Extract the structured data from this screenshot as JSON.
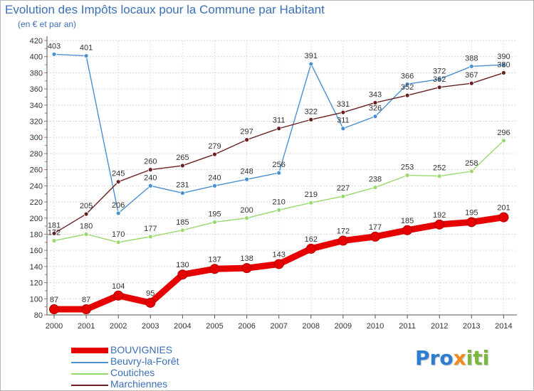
{
  "header": {
    "title": "Evolution des Impôts locaux pour la Commune par Habitant",
    "subtitle": "(en € et par an)"
  },
  "brand": {
    "part1": "Pro",
    "part2": "x",
    "part3": "iti"
  },
  "colors": {
    "bouvignies": "#e60000",
    "beuvry": "#4a90d0",
    "coutiches": "#99d86a",
    "marchiennes": "#6b1f1f",
    "title": "#3b6fb6",
    "grid": "#d9d9d9"
  },
  "chart_data": {
    "type": "line",
    "x": [
      "2000",
      "2001",
      "2002",
      "2003",
      "2004",
      "2005",
      "2006",
      "2007",
      "2008",
      "2009",
      "2010",
      "2011",
      "2012",
      "2013",
      "2014"
    ],
    "ylim": [
      80,
      420
    ],
    "yticks": [
      80,
      100,
      120,
      140,
      160,
      180,
      200,
      220,
      240,
      260,
      280,
      300,
      320,
      340,
      360,
      380,
      400,
      420
    ],
    "grid": true,
    "legend_position": "bottom-left",
    "series": [
      {
        "name": "BOUVIGNIES",
        "color": "#e60000",
        "values": [
          87,
          87,
          104,
          95,
          130,
          137,
          138,
          143,
          162,
          172,
          177,
          185,
          192,
          195,
          201
        ]
      },
      {
        "name": "Beuvry-la-Forêt",
        "color": "#4a90d0",
        "values": [
          403,
          401,
          206,
          240,
          231,
          240,
          248,
          256,
          391,
          311,
          326,
          366,
          372,
          388,
          390
        ]
      },
      {
        "name": "Coutiches",
        "color": "#99d86a",
        "values": [
          172,
          180,
          170,
          177,
          185,
          195,
          200,
          210,
          219,
          227,
          238,
          253,
          252,
          258,
          296
        ]
      },
      {
        "name": "Marchiennes",
        "color": "#6b1f1f",
        "values": [
          181,
          205,
          245,
          260,
          265,
          279,
          297,
          311,
          322,
          331,
          343,
          352,
          362,
          367,
          380
        ]
      }
    ]
  }
}
